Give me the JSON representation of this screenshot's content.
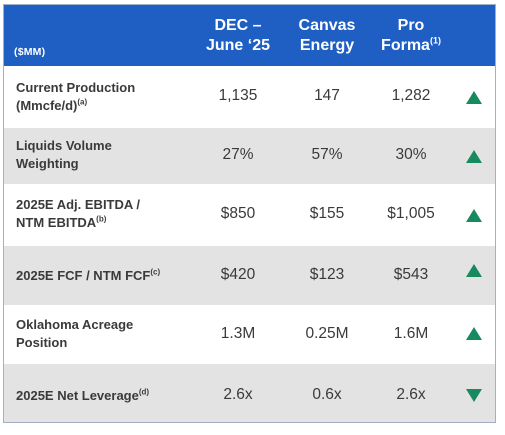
{
  "table": {
    "unit_label": "($MM)",
    "columns": [
      {
        "line1": "DEC –",
        "line2": "June ‘25",
        "sup": ""
      },
      {
        "line1": "Canvas",
        "line2": "Energy",
        "sup": ""
      },
      {
        "line1": "Pro",
        "line2": "Forma",
        "sup": "(1)"
      }
    ],
    "rows": [
      {
        "label1": "Current Production",
        "label2": "(Mmcfe/d)",
        "sup": "(a)",
        "values": [
          "1,135",
          "147",
          "1,282"
        ],
        "trend": "up"
      },
      {
        "label1": "Liquids Volume",
        "label2": "Weighting",
        "sup": "",
        "values": [
          "27%",
          "57%",
          "30%"
        ],
        "trend": "up"
      },
      {
        "label1": "2025E Adj. EBITDA /",
        "label2": "NTM EBITDA",
        "sup": "(b)",
        "values": [
          "$850",
          "$155",
          "$1,005"
        ],
        "trend": "up"
      },
      {
        "label1": "2025E FCF / NTM FCF",
        "label2": "",
        "sup": "(c)",
        "values": [
          "$420",
          "$123",
          "$543"
        ],
        "trend": "up"
      },
      {
        "label1": "Oklahoma Acreage",
        "label2": "Position",
        "sup": "",
        "values": [
          "1.3M",
          "0.25M",
          "1.6M"
        ],
        "trend": "up"
      },
      {
        "label1": "2025E Net Leverage",
        "label2": "",
        "sup": "(d)",
        "values": [
          "2.6x",
          "0.6x",
          "2.6x"
        ],
        "trend": "down"
      }
    ],
    "colors": {
      "header_bg": "#1f5fc4",
      "shade_row": "#e3e3e3",
      "arrow": "#178a5f",
      "text": "#3a3a3a"
    }
  }
}
